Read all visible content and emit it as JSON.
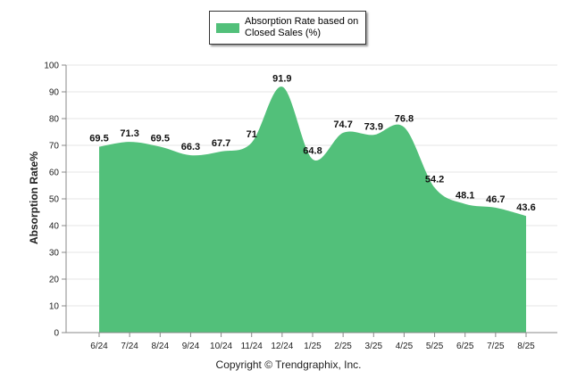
{
  "colors": {
    "area": "#52c07a",
    "grid": "#e6e6e6",
    "axis": "#888888",
    "text": "#222222"
  },
  "legend": {
    "label": "Absorption Rate based on Closed Sales (%)"
  },
  "copyright": "Copyright © Trendgraphix, Inc.",
  "chart_data": {
    "type": "area",
    "ylabel": "Absorption Rate%",
    "xlabel": "",
    "ylim": [
      0,
      100
    ],
    "yticks": [
      0,
      10,
      20,
      30,
      40,
      50,
      60,
      70,
      80,
      90,
      100
    ],
    "grid": true,
    "legend_position": "top-center",
    "categories": [
      "6/24",
      "7/24",
      "8/24",
      "9/24",
      "10/24",
      "11/24",
      "12/24",
      "1/25",
      "2/25",
      "3/25",
      "4/25",
      "5/25",
      "6/25",
      "7/25",
      "8/25"
    ],
    "series": [
      {
        "name": "Absorption Rate based on Closed Sales (%)",
        "values": [
          69.5,
          71.3,
          69.5,
          66.3,
          67.7,
          71,
          91.9,
          64.8,
          74.7,
          73.9,
          76.8,
          54.2,
          48.1,
          46.7,
          43.6
        ]
      }
    ]
  }
}
